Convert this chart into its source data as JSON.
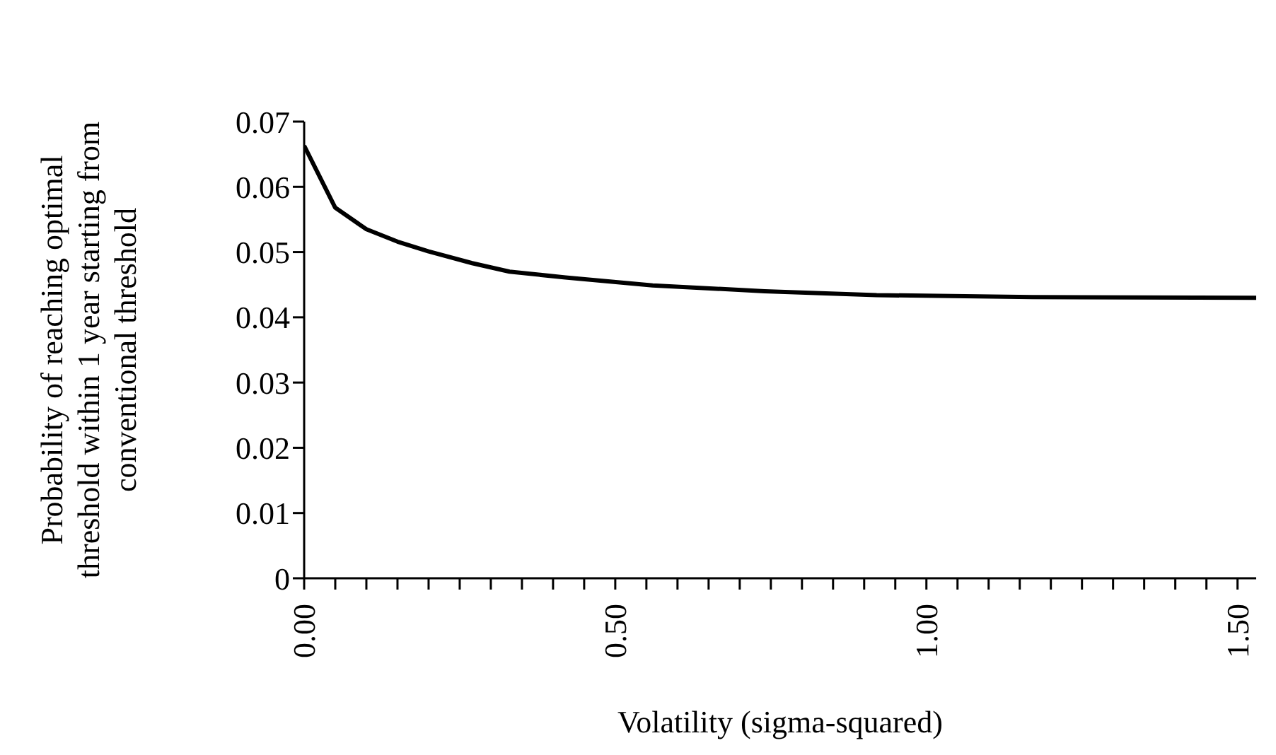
{
  "chart_data": {
    "type": "line",
    "xlabel": "Volatility (sigma-squared)",
    "ylabel": "Probability of reaching optimal threshold within 1 year starting from conventional threshold",
    "x": [
      0,
      0.05,
      0.1,
      0.15,
      0.2,
      0.27,
      0.33,
      0.42,
      0.56,
      0.74,
      0.92,
      1.17,
      1.53
    ],
    "series": [
      {
        "color": "#000000",
        "values": [
          0.0663,
          0.0568,
          0.0535,
          0.0516,
          0.0501,
          0.0483,
          0.047,
          0.0461,
          0.0449,
          0.044,
          0.0434,
          0.0431,
          0.043
        ]
      }
    ],
    "xlim": [
      0,
      1.53
    ],
    "xticks": [
      {
        "value": 0,
        "label": "0.00"
      },
      {
        "value": 0.05,
        "label": null
      },
      {
        "value": 0.1,
        "label": null
      },
      {
        "value": 0.15,
        "label": null
      },
      {
        "value": 0.2,
        "label": null
      },
      {
        "value": 0.25,
        "label": null
      },
      {
        "value": 0.3,
        "label": null
      },
      {
        "value": 0.35,
        "label": null
      },
      {
        "value": 0.4,
        "label": null
      },
      {
        "value": 0.45,
        "label": null
      },
      {
        "value": 0.5,
        "label": "0.50"
      },
      {
        "value": 0.55,
        "label": null
      },
      {
        "value": 0.6,
        "label": null
      },
      {
        "value": 0.65,
        "label": null
      },
      {
        "value": 0.7,
        "label": null
      },
      {
        "value": 0.75,
        "label": null
      },
      {
        "value": 0.8,
        "label": null
      },
      {
        "value": 0.85,
        "label": null
      },
      {
        "value": 0.9,
        "label": null
      },
      {
        "value": 0.95,
        "label": null
      },
      {
        "value": 1,
        "label": "1.00"
      },
      {
        "value": 1.05,
        "label": null
      },
      {
        "value": 1.1,
        "label": null
      },
      {
        "value": 1.15,
        "label": null
      },
      {
        "value": 1.2,
        "label": null
      },
      {
        "value": 1.25,
        "label": null
      },
      {
        "value": 1.3,
        "label": null
      },
      {
        "value": 1.35,
        "label": null
      },
      {
        "value": 1.4,
        "label": null
      },
      {
        "value": 1.45,
        "label": null
      },
      {
        "value": 1.5,
        "label": "1.50"
      }
    ],
    "ylim": [
      0,
      0.07
    ],
    "yticks": [
      0,
      0.01,
      0.02,
      0.03,
      0.04,
      0.05,
      0.06,
      0.07
    ],
    "grid": false,
    "legend": false
  }
}
